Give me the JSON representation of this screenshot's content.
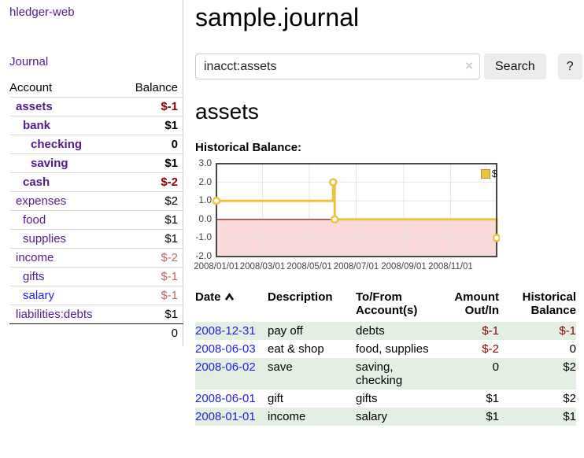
{
  "app_title": "hledger-web",
  "colors": {
    "link_purple": "#551a8b",
    "link_blue": "#2222dd",
    "negative_strong": "#8b0000",
    "negative_soft": "#c06868",
    "row_green": "#e3efe3",
    "chart_series": "#EDC240",
    "chart_negative_region": "#f9d9d9",
    "chart_zero_line": "#800000"
  },
  "sidebar": {
    "brand": "hledger-web",
    "journal_link": "Journal",
    "accounts": {
      "col_account": "Account",
      "col_balance": "Balance",
      "rows": [
        {
          "name": "assets",
          "balance": "$-1"
        },
        {
          "name": "bank",
          "balance": "$1"
        },
        {
          "name": "checking",
          "balance": "0"
        },
        {
          "name": "saving",
          "balance": "$1"
        },
        {
          "name": "cash",
          "balance": "$-2"
        },
        {
          "name": "expenses",
          "balance": "$2"
        },
        {
          "name": "food",
          "balance": "$1"
        },
        {
          "name": "supplies",
          "balance": "$1"
        },
        {
          "name": "income",
          "balance": "$-2"
        },
        {
          "name": "gifts",
          "balance": "$-1"
        },
        {
          "name": "salary",
          "balance": "$-1"
        },
        {
          "name": "liabilities:debts",
          "balance": "$1"
        }
      ],
      "total": "0"
    }
  },
  "main": {
    "title": "sample.journal",
    "search": {
      "value": "inacct:assets",
      "clear_icon": "×",
      "search_button": "Search",
      "help_button": "?"
    },
    "account_heading": "assets",
    "chart_label": "Historical Balance:",
    "register": {
      "columns": {
        "date": "Date",
        "description": "Description",
        "accounts": "To/From Account(s)",
        "amount": "Amount Out/In",
        "balance": "Historical Balance"
      },
      "rows": [
        {
          "date": "2008-12-31",
          "description": "pay off",
          "accounts": "debts",
          "amount": "$-1",
          "balance": "$-1"
        },
        {
          "date": "2008-06-03",
          "description": "eat & shop",
          "accounts": "food, supplies",
          "amount": "$-2",
          "balance": "0"
        },
        {
          "date": "2008-06-02",
          "description": "save",
          "accounts": "saving, checking",
          "amount": "0",
          "balance": "$2"
        },
        {
          "date": "2008-06-01",
          "description": "gift",
          "accounts": "gifts",
          "amount": "$1",
          "balance": "$2"
        },
        {
          "date": "2008-01-01",
          "description": "income",
          "accounts": "salary",
          "amount": "$1",
          "balance": "$1"
        }
      ]
    }
  },
  "chart_data": {
    "type": "line",
    "step": true,
    "title": "Historical Balance:",
    "series": [
      {
        "name": "$",
        "color": "#EDC240",
        "points": [
          [
            "2008-01-01",
            1.0
          ],
          [
            "2008-06-01",
            2.0
          ],
          [
            "2008-06-03",
            0.0
          ],
          [
            "2008-12-31",
            -1.0
          ]
        ]
      }
    ],
    "xrange": [
      "2008-01-01",
      "2008-12-31"
    ],
    "ylim": [
      -2.0,
      3.0
    ],
    "yticks": [
      3.0,
      2.0,
      1.0,
      0.0,
      -1.0,
      -2.0
    ],
    "xticks": [
      {
        "date": "2008-01-01",
        "label": "2008/01/01"
      },
      {
        "date": "2008-03-01",
        "label": "2008/03/01"
      },
      {
        "date": "2008-05-01",
        "label": "2008/05/01"
      },
      {
        "date": "2008-07-01",
        "label": "2008/07/01"
      },
      {
        "date": "2008-09-01",
        "label": "2008/09/01"
      },
      {
        "date": "2008-11-01",
        "label": "2008/11/01"
      }
    ],
    "grid": true,
    "legend_position": "top-right",
    "negative_region_shaded": true
  }
}
